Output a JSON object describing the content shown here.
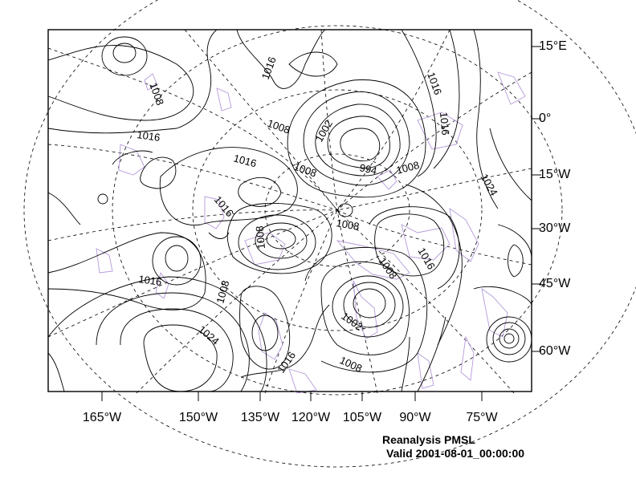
{
  "title": "Reanalysis PMSL",
  "valid_time": "Valid 2001-08-01_00:00:00",
  "field": "PMSL",
  "colors": {
    "contour": "#000000",
    "coastline": "#b59ad9",
    "grid": "#000000",
    "background": "#ffffff"
  },
  "longitude_labels": [
    "165°W",
    "150°W",
    "135°W",
    "120°W",
    "105°W",
    "90°W",
    "75°W"
  ],
  "latitude_labels": [
    "15°E",
    "0°",
    "15°W",
    "30°W",
    "45°W",
    "60°W"
  ],
  "contour_labels": [
    {
      "text": "1016"
    },
    {
      "text": "1008"
    },
    {
      "text": "1016"
    },
    {
      "text": "1008"
    },
    {
      "text": "1002"
    },
    {
      "text": "1016"
    },
    {
      "text": "1016"
    },
    {
      "text": "1008"
    },
    {
      "text": "994"
    },
    {
      "text": "1008"
    },
    {
      "text": "1024"
    },
    {
      "text": "1016"
    },
    {
      "text": "1008"
    },
    {
      "text": "1008"
    },
    {
      "text": "1008"
    },
    {
      "text": "1016"
    },
    {
      "text": "1016"
    },
    {
      "text": "1016"
    },
    {
      "text": "1008"
    },
    {
      "text": "1024"
    },
    {
      "text": "1002"
    },
    {
      "text": "1016"
    },
    {
      "text": "1008"
    }
  ]
}
